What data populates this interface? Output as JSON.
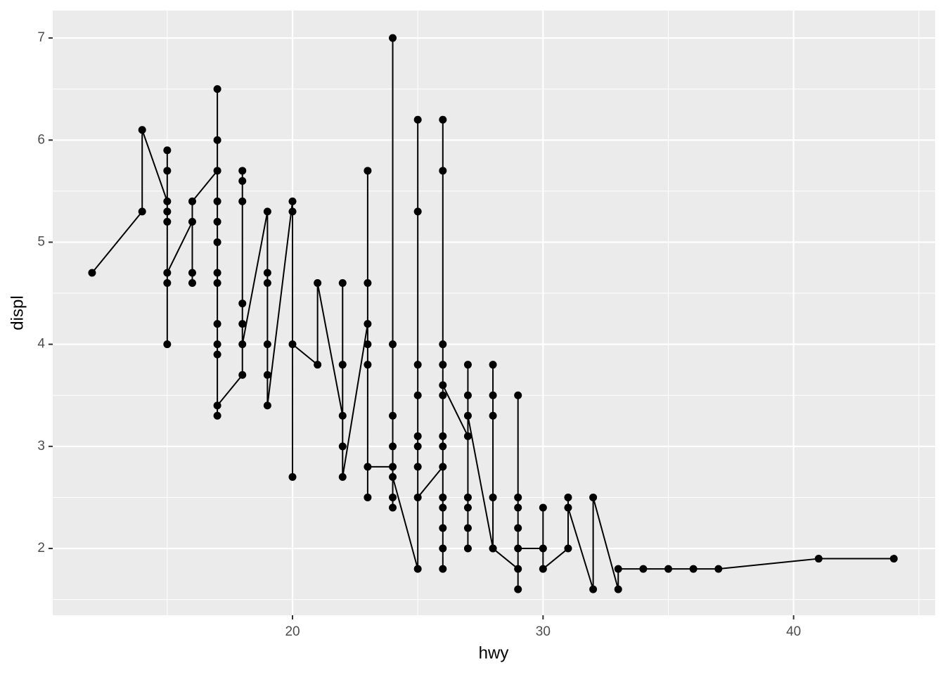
{
  "chart_data": {
    "type": "line",
    "x_label": "hwy",
    "y_label": "displ",
    "x": [
      12,
      14,
      14,
      15,
      15,
      15,
      15,
      15,
      15,
      15,
      15,
      16,
      16,
      16,
      16,
      17,
      17,
      17,
      17,
      17,
      17,
      17,
      17,
      17,
      17,
      17,
      17,
      17,
      18,
      18,
      18,
      18,
      18,
      18,
      18,
      19,
      19,
      19,
      19,
      19,
      19,
      20,
      20,
      20,
      20,
      21,
      21,
      22,
      22,
      22,
      22,
      22,
      23,
      23,
      23,
      23,
      23,
      23,
      23,
      24,
      24,
      24,
      24,
      24,
      24,
      24,
      24,
      25,
      25,
      25,
      25,
      25,
      25,
      25,
      25,
      25,
      26,
      26,
      26,
      26,
      26,
      26,
      26,
      26,
      26,
      26,
      26,
      26,
      26,
      26,
      27,
      27,
      27,
      27,
      27,
      27,
      27,
      27,
      28,
      28,
      28,
      28,
      28,
      28,
      29,
      29,
      29,
      29,
      29,
      29,
      29,
      30,
      30,
      30,
      31,
      31,
      31,
      32,
      32,
      33,
      33,
      34,
      35,
      36,
      37,
      41,
      44
    ],
    "values": [
      4.7,
      5.3,
      6.1,
      5.4,
      5.9,
      5.7,
      5.3,
      5.2,
      4.6,
      4.0,
      4.7,
      5.2,
      4.6,
      4.7,
      5.4,
      5.7,
      6.5,
      6.0,
      5.4,
      5.2,
      5.0,
      4.7,
      4.6,
      4.2,
      4.0,
      3.9,
      3.3,
      3.4,
      3.7,
      5.7,
      5.6,
      5.4,
      4.4,
      4.2,
      4.0,
      5.3,
      4.7,
      4.6,
      4.0,
      3.7,
      3.4,
      5.4,
      5.3,
      2.7,
      4.0,
      3.8,
      4.6,
      3.3,
      4.6,
      3.8,
      3.0,
      2.7,
      4.2,
      5.7,
      4.6,
      4.0,
      3.8,
      2.5,
      2.8,
      2.8,
      7.0,
      4.0,
      3.3,
      3.0,
      2.5,
      2.4,
      2.7,
      1.8,
      6.2,
      5.3,
      3.8,
      3.5,
      3.1,
      3.0,
      2.8,
      2.5,
      2.8,
      1.8,
      6.2,
      5.7,
      4.0,
      3.8,
      3.5,
      3.1,
      3.0,
      2.5,
      2.4,
      2.2,
      2.0,
      3.6,
      3.1,
      2.0,
      3.8,
      3.5,
      2.5,
      2.4,
      2.2,
      3.3,
      2.0,
      3.8,
      3.5,
      3.3,
      2.5,
      2.0,
      1.8,
      3.5,
      2.5,
      2.4,
      2.2,
      1.6,
      2.0,
      2.0,
      2.4,
      1.8,
      2.0,
      2.5,
      2.4,
      1.6,
      2.5,
      1.6,
      1.8,
      1.8,
      1.8,
      1.8,
      1.8,
      1.9,
      1.9
    ],
    "color": "#000000",
    "markers": true,
    "background": "#ebebeb",
    "grid": true,
    "xlim": [
      10.43,
      45.65
    ],
    "ylim": [
      1.346,
      7.269
    ],
    "xticks": [
      20,
      30,
      40
    ],
    "yticks": [
      2,
      3,
      4,
      5,
      6,
      7
    ],
    "xminor": [
      15,
      25,
      35,
      45
    ],
    "yminor": [
      1.5,
      2.5,
      3.5,
      4.5,
      5.5,
      6.5
    ]
  }
}
